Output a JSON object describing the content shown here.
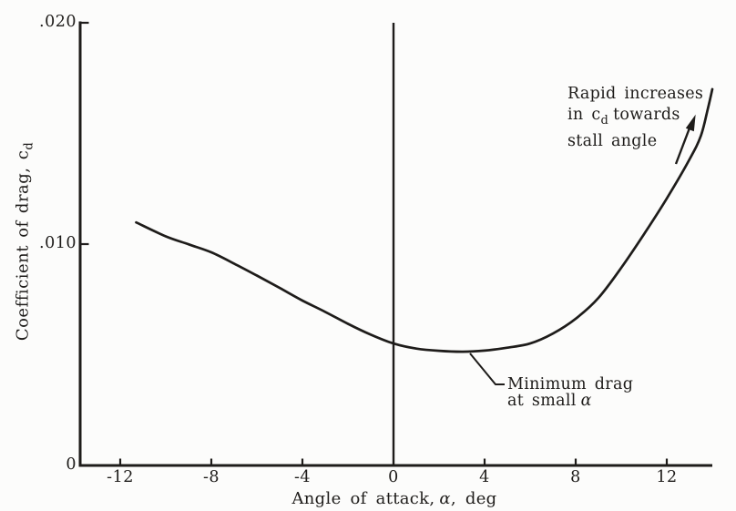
{
  "figure": {
    "background": "#fcfcfb",
    "ink": "#1e1c1a"
  },
  "chart_data": {
    "type": "line",
    "title": "",
    "xlabel": "Angle of attack, α, deg",
    "ylabel": "Coefficient of drag, c_d",
    "xlabel_parts": {
      "pre": "Angle of attack,",
      "alpha": "α",
      "post": ", deg"
    },
    "ylabel_parts": {
      "pre": "Coefficient of drag, c",
      "sub": "d"
    },
    "xlim": [
      -13.8,
      14
    ],
    "ylim": [
      0,
      0.02
    ],
    "grid": false,
    "x_ticks": [
      {
        "value": -12,
        "label": "-12"
      },
      {
        "value": -8,
        "label": "-8"
      },
      {
        "value": -4,
        "label": "-4"
      },
      {
        "value": 0,
        "label": "0"
      },
      {
        "value": 4,
        "label": "4"
      },
      {
        "value": 8,
        "label": "8"
      },
      {
        "value": 12,
        "label": "12"
      }
    ],
    "y_ticks": [
      {
        "value": 0,
        "label": "0"
      },
      {
        "value": 0.01,
        "label": ".010"
      },
      {
        "value": 0.02,
        "label": ".020"
      }
    ],
    "zero_reference_line_x": 0,
    "series": [
      {
        "name": "Section drag coefficient vs angle of attack",
        "x": [
          -11.3,
          -10,
          -9,
          -8,
          -7,
          -6,
          -5,
          -4,
          -3,
          -2,
          -1,
          0,
          1,
          2,
          3,
          4,
          5,
          6,
          7,
          8,
          9,
          10,
          11,
          12,
          13,
          13.5,
          13.8,
          14
        ],
        "y": [
          0.01098,
          0.01035,
          0.00999,
          0.00963,
          0.00912,
          0.00858,
          0.00802,
          0.00745,
          0.00694,
          0.0064,
          0.00591,
          0.00551,
          0.00528,
          0.00518,
          0.00514,
          0.00519,
          0.00532,
          0.00551,
          0.00596,
          0.00663,
          0.00757,
          0.00893,
          0.01045,
          0.01206,
          0.01383,
          0.0149,
          0.0161,
          0.017
        ]
      }
    ],
    "annotations": {
      "rapid_increase": {
        "full_text": "Rapid increases in cd towards stall angle",
        "line1": "Rapid increases",
        "line2_pre": "in c",
        "line2_sub": "d",
        "line2_post": "towards",
        "line3": "stall angle"
      },
      "minimum_drag": {
        "full_text": "Minimum drag at small α",
        "line1": "Minimum drag",
        "line2_pre": "at small",
        "line2_alpha": "α"
      }
    }
  }
}
